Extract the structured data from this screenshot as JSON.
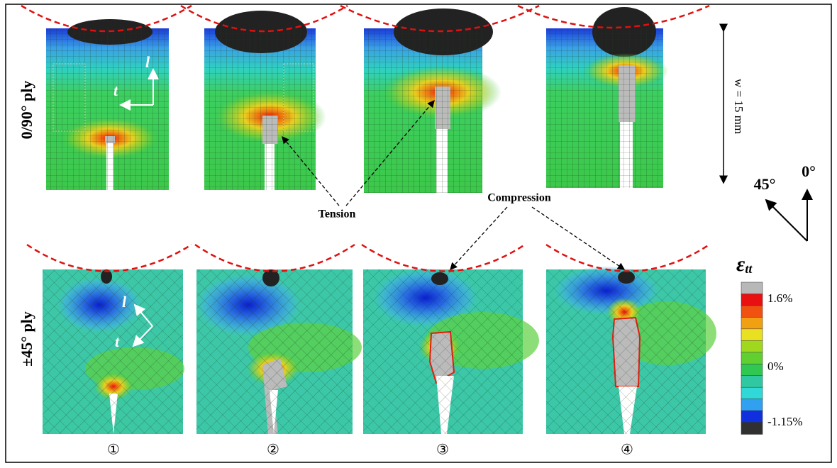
{
  "row_labels": [
    "0/90° ply",
    "±45° ply"
  ],
  "top_axes": {
    "l": "l",
    "t": "t"
  },
  "bottom_axes": {
    "l": "l",
    "t": "t"
  },
  "width_label": "w = 15 mm",
  "annotations": {
    "tension": "Tension",
    "compression": "Compression"
  },
  "directions": [
    "45°",
    "0°"
  ],
  "legend": {
    "title": "ε",
    "subscript": "tt",
    "labels": [
      "1.6%",
      "0%",
      "-1.15%"
    ]
  },
  "steps": [
    "①",
    "②",
    "③",
    "④"
  ]
}
